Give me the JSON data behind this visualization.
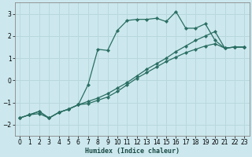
{
  "title": "",
  "xlabel": "Humidex (Indice chaleur)",
  "ylabel": "",
  "bg_color": "#cce8ee",
  "grid_color": "#b8d8de",
  "line_color": "#2a6e62",
  "ylim": [
    -2.5,
    3.5
  ],
  "xlim": [
    -0.5,
    23.5
  ],
  "yticks": [
    -2,
    -1,
    0,
    1,
    2,
    3
  ],
  "xticks": [
    0,
    1,
    2,
    3,
    4,
    5,
    6,
    7,
    8,
    9,
    10,
    11,
    12,
    13,
    14,
    15,
    16,
    17,
    18,
    19,
    20,
    21,
    22,
    23
  ],
  "line1_x": [
    0,
    1,
    2,
    3,
    4,
    5,
    6,
    7,
    8,
    9,
    10,
    11,
    12,
    13,
    14,
    15,
    16,
    17,
    18,
    19,
    20,
    21,
    22,
    23
  ],
  "line1_y": [
    -1.7,
    -1.55,
    -1.5,
    -1.7,
    -1.45,
    -1.3,
    -1.1,
    -0.2,
    1.4,
    1.35,
    2.25,
    2.7,
    2.75,
    2.75,
    2.8,
    2.65,
    3.1,
    2.35,
    2.35,
    2.55,
    1.8,
    1.45,
    1.5,
    1.5
  ],
  "line2_x": [
    0,
    1,
    2,
    3,
    4,
    5,
    6,
    7,
    8,
    9,
    10,
    11,
    12,
    13,
    14,
    15,
    16,
    17,
    18,
    19,
    20,
    21,
    22,
    23
  ],
  "line2_y": [
    -1.7,
    -1.55,
    -1.4,
    -1.7,
    -1.45,
    -1.3,
    -1.1,
    -1.05,
    -0.9,
    -0.75,
    -0.5,
    -0.2,
    0.1,
    0.35,
    0.6,
    0.85,
    1.05,
    1.25,
    1.4,
    1.55,
    1.65,
    1.45,
    1.5,
    1.5
  ],
  "line3_x": [
    0,
    1,
    2,
    3,
    4,
    5,
    6,
    7,
    8,
    9,
    10,
    11,
    12,
    13,
    14,
    15,
    16,
    17,
    18,
    19,
    20,
    21,
    22,
    23
  ],
  "line3_y": [
    -1.7,
    -1.55,
    -1.4,
    -1.7,
    -1.45,
    -1.3,
    -1.1,
    -0.95,
    -0.8,
    -0.6,
    -0.35,
    -0.1,
    0.2,
    0.5,
    0.75,
    1.0,
    1.3,
    1.55,
    1.8,
    2.0,
    2.2,
    1.45,
    1.5,
    1.5
  ]
}
